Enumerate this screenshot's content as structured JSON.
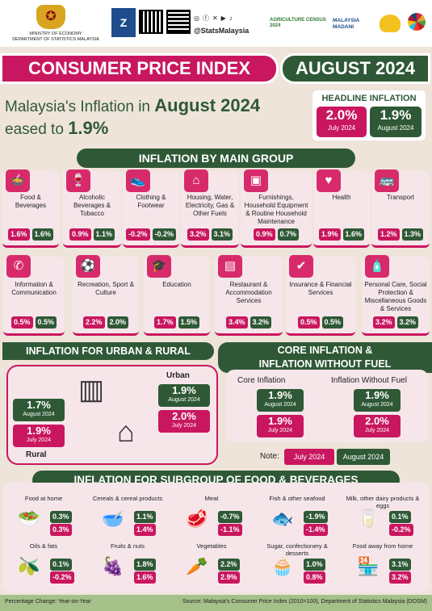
{
  "header": {
    "ministry": "MINISTRY OF ECONOMY",
    "department": "DEPARTMENT OF STATISTICS MALAYSIA",
    "social": "@StatsMalaysia",
    "census": "AGRICULTURE CENSUS 2024",
    "madani": "MALAYSIA MADANI"
  },
  "title": {
    "main": "CONSUMER PRICE INDEX",
    "month": "AUGUST 2024"
  },
  "headline": {
    "line1_pre": "Malaysia's Inflation in",
    "line1_bold": "August 2024",
    "line2_pre": "eased to",
    "line2_bold": "1.9%",
    "box_title": "HEADLINE INFLATION",
    "prev_value": "2.0%",
    "prev_label": "July 2024",
    "cur_value": "1.9%",
    "cur_label": "August 2024"
  },
  "main_group": {
    "title": "INFLATION BY MAIN GROUP",
    "items": [
      {
        "label": "Food & Beverages",
        "icon": "food-icon",
        "glyph": "🍲",
        "jul": "1.6%",
        "aug": "1.6%"
      },
      {
        "label": "Alcoholic Beverages & Tobacco",
        "icon": "wine-icon",
        "glyph": "🍷",
        "jul": "0.9%",
        "aug": "1.1%"
      },
      {
        "label": "Clothing & Footwear",
        "icon": "shoe-icon",
        "glyph": "👟",
        "jul": "-0.2%",
        "aug": "-0.2%"
      },
      {
        "label": "Housing, Water, Electricity, Gas & Other Fuels",
        "icon": "house-icon",
        "glyph": "⌂",
        "jul": "3.2%",
        "aug": "3.1%"
      },
      {
        "label": "Furnishings, Household Equipment & Routine Household Maintenance",
        "icon": "appliance-icon",
        "glyph": "▣",
        "jul": "0.9%",
        "aug": "0.7%"
      },
      {
        "label": "Health",
        "icon": "heart-icon",
        "glyph": "♥",
        "jul": "1.9%",
        "aug": "1.6%"
      },
      {
        "label": "Transport",
        "icon": "bus-icon",
        "glyph": "🚌",
        "jul": "1.2%",
        "aug": "1.3%"
      },
      {
        "label": "Information & Communication",
        "icon": "phone-icon",
        "glyph": "✆",
        "jul": "0.5%",
        "aug": "0.5%"
      },
      {
        "label": "Recreation, Sport & Culture",
        "icon": "sport-icon",
        "glyph": "⚽",
        "jul": "2.2%",
        "aug": "2.0%"
      },
      {
        "label": "Education",
        "icon": "graduation-cap-icon",
        "glyph": "🎓",
        "jul": "1.7%",
        "aug": "1.5%"
      },
      {
        "label": "Restaurant & Accommodation Services",
        "icon": "building-icon",
        "glyph": "▤",
        "jul": "3.4%",
        "aug": "3.2%"
      },
      {
        "label": "Insurance & Financial Services",
        "icon": "insurance-icon",
        "glyph": "✔",
        "jul": "0.5%",
        "aug": "0.5%"
      },
      {
        "label": "Personal Care, Social Protection & Miscellaneous Goods & Services",
        "icon": "bottle-icon",
        "glyph": "🧴",
        "jul": "3.2%",
        "aug": "3.2%"
      }
    ]
  },
  "urban_rural": {
    "title": "INFLATION FOR URBAN & RURAL",
    "urban": "Urban",
    "rural": "Rural",
    "urban_aug": "1.9%",
    "urban_jul": "2.0%",
    "rural_aug": "1.7%",
    "rural_jul": "1.9%",
    "aug_label": "August 2024",
    "jul_label": "July 2024"
  },
  "core": {
    "title_l1": "CORE INFLATION &",
    "title_l2": "INFLATION WITHOUT FUEL",
    "core_label": "Core Inflation",
    "fuel_label": "Inflation Without Fuel",
    "core_aug": "1.9%",
    "core_jul": "1.9%",
    "fuel_aug": "1.9%",
    "fuel_jul": "2.0%",
    "aug_label": "August 2024",
    "jul_label": "July 2024",
    "note": "Note:",
    "note_jul": "July 2024",
    "note_aug": "August 2024"
  },
  "subgroup": {
    "title": "INFLATION FOR SUBGROUP OF FOOD & BEVERAGES",
    "items": [
      {
        "label": "Food at home",
        "icon": "pot-icon",
        "glyph": "🥗",
        "aug": "0.3%",
        "jul": "0.3%"
      },
      {
        "label": "Cereals & cereal products",
        "icon": "cereal-icon",
        "glyph": "🥣",
        "aug": "1.1%",
        "jul": "1.4%"
      },
      {
        "label": "Meat",
        "icon": "meat-icon",
        "glyph": "🥩",
        "aug": "-0.7%",
        "jul": "-1.1%"
      },
      {
        "label": "Fish & other seafood",
        "icon": "fish-icon",
        "glyph": "🐟",
        "aug": "-1.9%",
        "jul": "-1.4%"
      },
      {
        "label": "Milk, other dairy products & eggs",
        "icon": "milk-icon",
        "glyph": "🥛",
        "aug": "0.1%",
        "jul": "-0.2%"
      },
      {
        "label": "Oils & fats",
        "icon": "oil-icon",
        "glyph": "🫒",
        "aug": "0.1%",
        "jul": "-0.2%"
      },
      {
        "label": "Fruits & nuts",
        "icon": "fruit-icon",
        "glyph": "🍇",
        "aug": "1.8%",
        "jul": "1.6%"
      },
      {
        "label": "Vegetables",
        "icon": "vegetable-icon",
        "glyph": "🥕",
        "aug": "2.2%",
        "jul": "2.9%"
      },
      {
        "label": "Sugar, confectionery & desserts",
        "icon": "cake-icon",
        "glyph": "🧁",
        "aug": "1.0%",
        "jul": "0.8%"
      },
      {
        "label": "Food away from home",
        "icon": "shop-icon",
        "glyph": "🏪",
        "aug": "3.1%",
        "jul": "3.2%"
      }
    ]
  },
  "footer": {
    "left": "Percentage Change: Year-on-Year",
    "right": "Source: Malaysia's Consumer Price Index (2010=100), Department of Statistics Malaysia (DOSM)"
  },
  "colors": {
    "magenta": "#c9175f",
    "green": "#2f5936",
    "background": "#efe4da"
  }
}
